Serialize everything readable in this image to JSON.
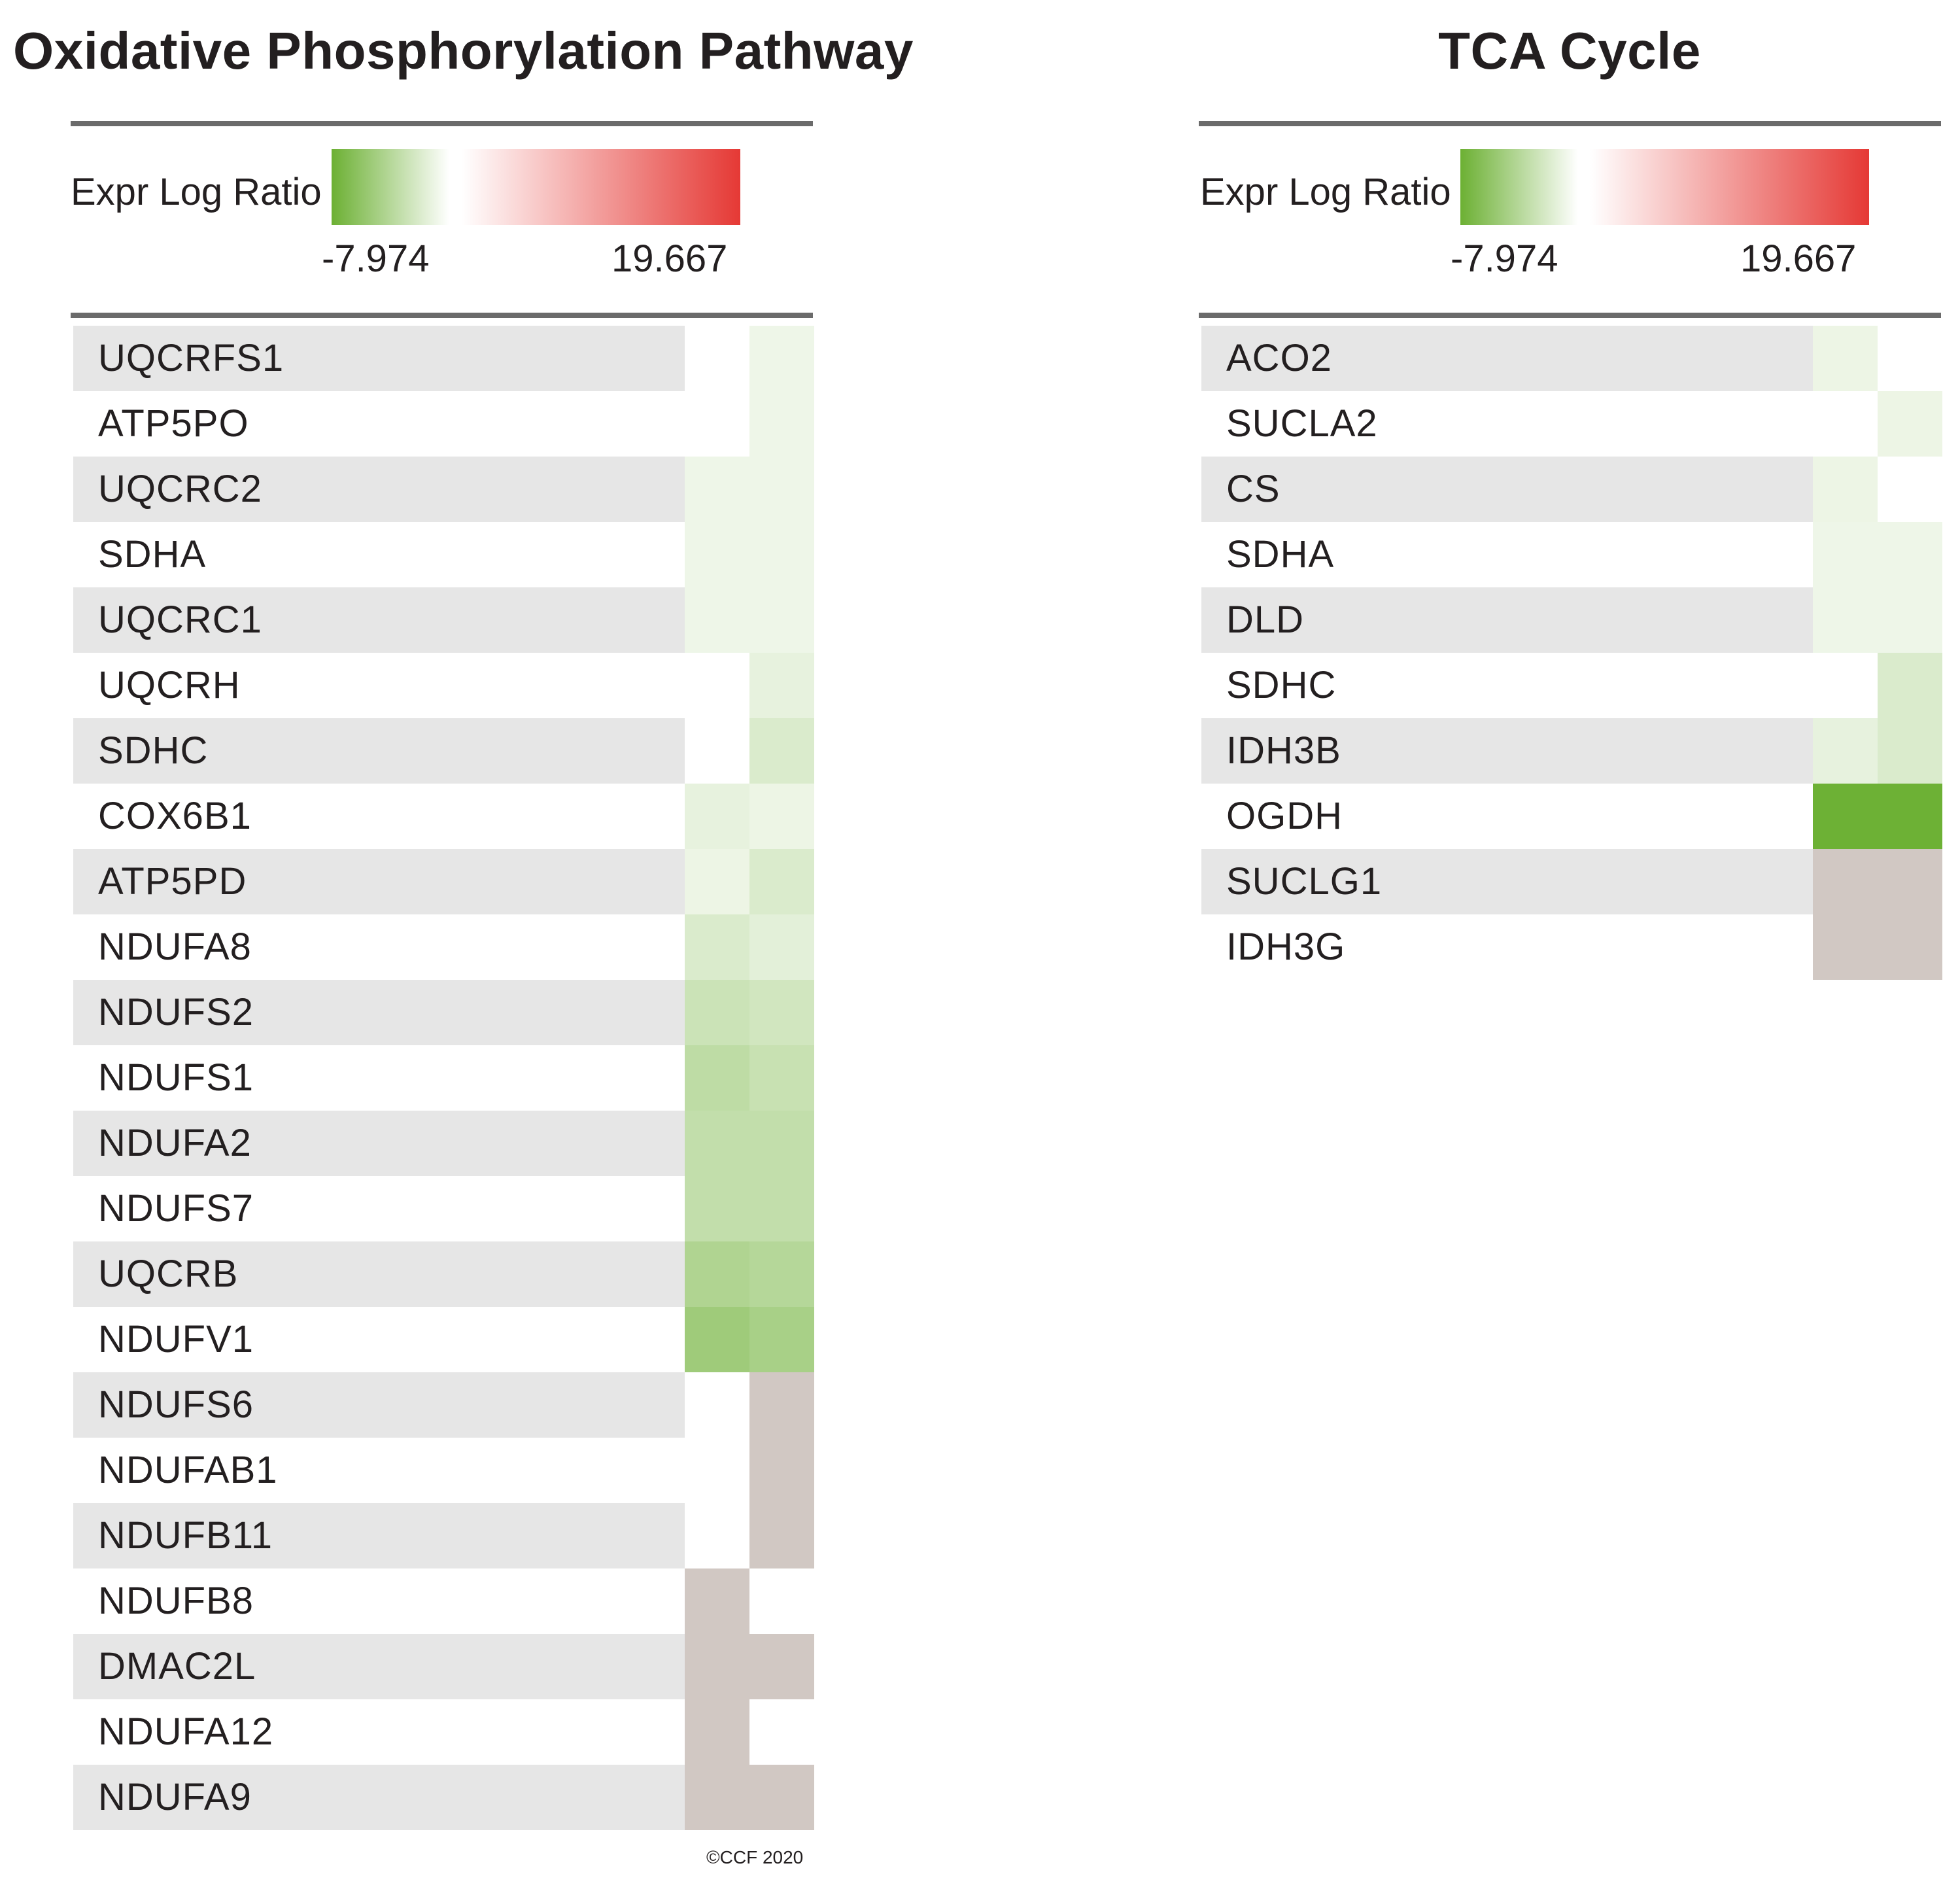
{
  "colors": {
    "low": "#6cb033",
    "mid": "#ffffff",
    "high": "#e53935",
    "no_data": "#d1c8c3",
    "row_shade": "#e6e6e6"
  },
  "chart_data": [
    {
      "type": "heatmap",
      "title": "Oxidative Phosphorylation Pathway",
      "legend": {
        "label": "Expr Log Ratio",
        "min_label": "-7.974",
        "max_label": "19.667",
        "min": -7.974,
        "max": 19.667
      },
      "columns": 2,
      "value_note": "null = no value shown; 'NA' = grey cell",
      "rows": [
        {
          "gene": "UQCRFS1",
          "values": [
            null,
            -0.9
          ]
        },
        {
          "gene": "ATP5PO",
          "values": [
            null,
            -0.9
          ]
        },
        {
          "gene": "UQCRC2",
          "values": [
            -0.9,
            -0.9
          ]
        },
        {
          "gene": "SDHA",
          "values": [
            -0.9,
            -0.9
          ]
        },
        {
          "gene": "UQCRC1",
          "values": [
            -0.9,
            -0.9
          ]
        },
        {
          "gene": "UQCRH",
          "values": [
            null,
            -1.3
          ]
        },
        {
          "gene": "SDHC",
          "values": [
            null,
            -2.0
          ]
        },
        {
          "gene": "COX6B1",
          "values": [
            -1.3,
            -1.0
          ]
        },
        {
          "gene": "ATP5PD",
          "values": [
            -1.0,
            -2.0
          ]
        },
        {
          "gene": "NDUFA8",
          "values": [
            -2.0,
            -1.5
          ]
        },
        {
          "gene": "NDUFS2",
          "values": [
            -2.8,
            -2.5
          ]
        },
        {
          "gene": "NDUFS1",
          "values": [
            -3.5,
            -3.0
          ]
        },
        {
          "gene": "NDUFA2",
          "values": [
            -3.3,
            -3.3
          ]
        },
        {
          "gene": "NDUFS7",
          "values": [
            -3.3,
            -3.3
          ]
        },
        {
          "gene": "UQCRB",
          "values": [
            -4.3,
            -4.0
          ]
        },
        {
          "gene": "NDUFV1",
          "values": [
            -5.2,
            -4.7
          ]
        },
        {
          "gene": "NDUFS6",
          "values": [
            null,
            "NA"
          ]
        },
        {
          "gene": "NDUFAB1",
          "values": [
            null,
            "NA"
          ]
        },
        {
          "gene": "NDUFB11",
          "values": [
            null,
            "NA"
          ]
        },
        {
          "gene": "NDUFB8",
          "values": [
            "NA",
            null
          ]
        },
        {
          "gene": "DMAC2L",
          "values": [
            "NA",
            "NA"
          ]
        },
        {
          "gene": "NDUFA12",
          "values": [
            "NA",
            null
          ]
        },
        {
          "gene": "NDUFA9",
          "values": [
            "NA",
            "NA"
          ]
        }
      ],
      "footer": "©CCF 2020"
    },
    {
      "type": "heatmap",
      "title": "TCA Cycle",
      "legend": {
        "label": "Expr Log Ratio",
        "min_label": "-7.974",
        "max_label": "19.667",
        "min": -7.974,
        "max": 19.667
      },
      "columns": 2,
      "value_note": "null = no value shown; 'NA' = grey cell",
      "rows": [
        {
          "gene": "ACO2",
          "values": [
            -1.0,
            null
          ]
        },
        {
          "gene": "SUCLA2",
          "values": [
            null,
            -1.0
          ]
        },
        {
          "gene": "CS",
          "values": [
            -1.0,
            null
          ]
        },
        {
          "gene": "SDHA",
          "values": [
            -0.9,
            -0.9
          ]
        },
        {
          "gene": "DLD",
          "values": [
            -0.9,
            -0.9
          ]
        },
        {
          "gene": "SDHC",
          "values": [
            null,
            -2.0
          ]
        },
        {
          "gene": "IDH3B",
          "values": [
            -1.3,
            -2.0
          ]
        },
        {
          "gene": "OGDH",
          "values": [
            -7.9,
            -7.9
          ]
        },
        {
          "gene": "SUCLG1",
          "values": [
            "NA",
            "NA"
          ]
        },
        {
          "gene": "IDH3G",
          "values": [
            "NA",
            "NA"
          ]
        }
      ]
    }
  ]
}
